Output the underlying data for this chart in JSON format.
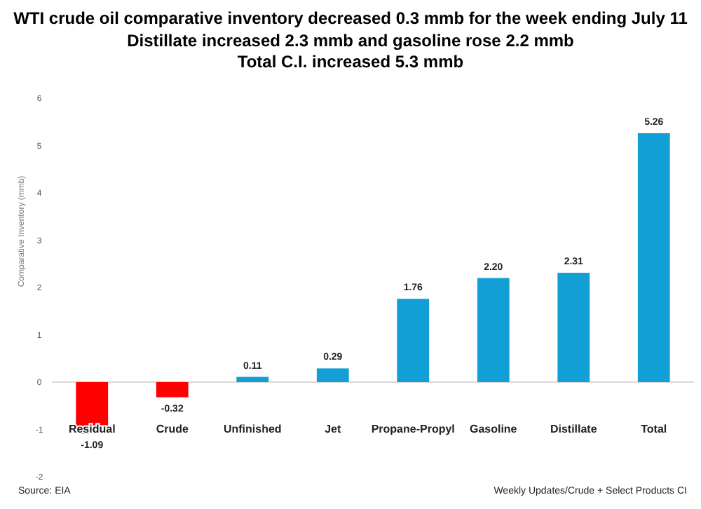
{
  "chart_data": {
    "type": "bar",
    "title": "WTI crude oil comparative inventory decreased 0.3 mmb for the week ending July 11",
    "subtitle": "Distillate increased 2.3 mmb and gasoline rose 2.2 mmb\nTotal C.I. increased 5.3 mmb",
    "ylabel": "Comparative Inventory (mmb)",
    "categories": [
      "Residual",
      "Crude",
      "Unfinished",
      "Jet",
      "Propane-Propyl",
      "Gasoline",
      "Distillate",
      "Total"
    ],
    "values": [
      -1.09,
      -0.32,
      0.11,
      0.29,
      1.76,
      2.2,
      2.31,
      5.26
    ],
    "colors": [
      "#ff0000",
      "#ff0000",
      "#119fd6",
      "#119fd6",
      "#119fd6",
      "#119fd6",
      "#119fd6",
      "#119fd6"
    ],
    "value_labels": [
      "-1.09",
      "-0.32",
      "0.11",
      "0.29",
      "1.76",
      "2.20",
      "2.31",
      "5.26"
    ],
    "ylim": [
      -2,
      6
    ],
    "yticks": [
      -2,
      -1,
      0,
      1,
      2,
      3,
      4,
      5,
      6
    ],
    "annotations": [
      "Source:  EIA",
      "Weekly Updates/Crude + Select Products CI"
    ]
  }
}
